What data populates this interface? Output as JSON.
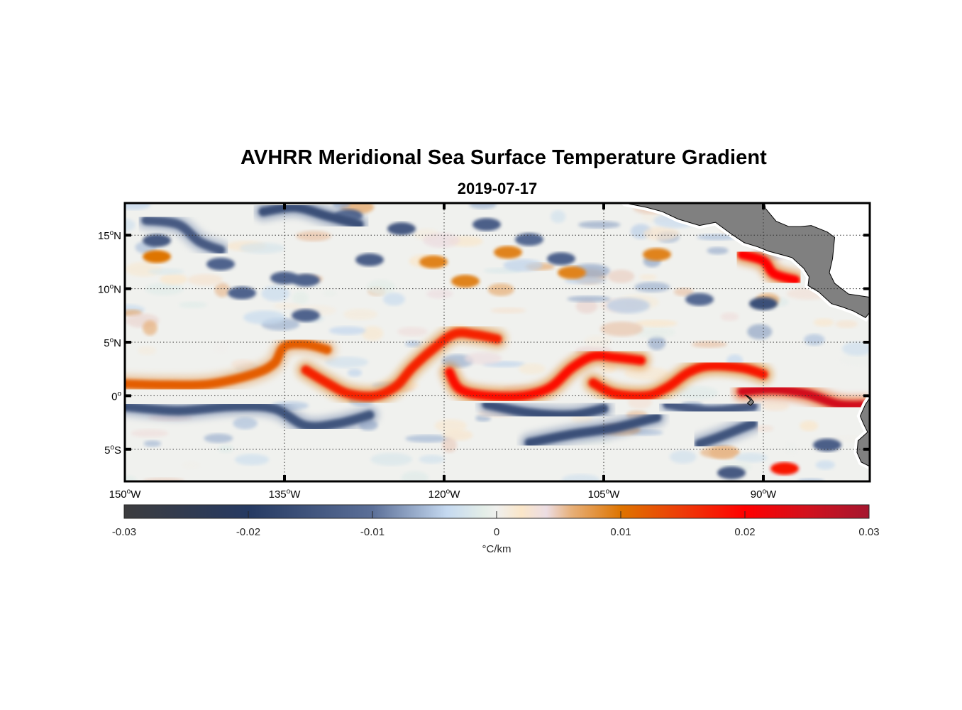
{
  "title": "AVHRR Meridional Sea Surface Temperature Gradient",
  "subtitle": "2019-07-17",
  "map": {
    "projection": "equirectangular",
    "lon_range": [
      -150,
      -80
    ],
    "lat_range": [
      -8,
      18
    ],
    "lat_ticks": [
      {
        "value": 15,
        "label": "15",
        "hemi": "N"
      },
      {
        "value": 10,
        "label": "10",
        "hemi": "N"
      },
      {
        "value": 5,
        "label": "5",
        "hemi": "N"
      },
      {
        "value": 0,
        "label": "0",
        "hemi": ""
      },
      {
        "value": -5,
        "label": "5",
        "hemi": "S"
      }
    ],
    "lon_ticks": [
      {
        "value": -150,
        "label": "150",
        "hemi": "W"
      },
      {
        "value": -135,
        "label": "135",
        "hemi": "W"
      },
      {
        "value": -120,
        "label": "120",
        "hemi": "W"
      },
      {
        "value": -105,
        "label": "105",
        "hemi": "W"
      },
      {
        "value": -90,
        "label": "90",
        "hemi": "W"
      }
    ],
    "grid": "dotted",
    "land_color": "#808080",
    "features": {
      "fronts": [
        {
          "name": "tiw-front-west",
          "value": 0.012,
          "points": [
            [
              -150,
              1.1
            ],
            [
              -146,
              1.0
            ],
            [
              -142,
              1.1
            ],
            [
              -138,
              2.0
            ],
            [
              -136,
              3.0
            ],
            [
              -135,
              4.6
            ],
            [
              -133,
              4.8
            ],
            [
              -131,
              4.3
            ]
          ]
        },
        {
          "name": "tiw-front-1",
          "value": 0.017,
          "points": [
            [
              -133,
              2.4
            ],
            [
              -131,
              1.2
            ],
            [
              -129,
              0.2
            ],
            [
              -126.5,
              0.0
            ],
            [
              -124.5,
              0.9
            ],
            [
              -123,
              2.6
            ],
            [
              -121,
              4.4
            ],
            [
              -119,
              5.8
            ],
            [
              -117,
              5.7
            ],
            [
              -115,
              5.3
            ]
          ]
        },
        {
          "name": "tiw-front-2",
          "value": 0.019,
          "points": [
            [
              -119.5,
              2.2
            ],
            [
              -118.5,
              0.6
            ],
            [
              -116,
              0.0
            ],
            [
              -112.5,
              0.0
            ],
            [
              -110,
              0.8
            ],
            [
              -108,
              2.6
            ],
            [
              -106,
              3.7
            ],
            [
              -104,
              3.6
            ],
            [
              -101.5,
              3.3
            ]
          ]
        },
        {
          "name": "tiw-front-3",
          "value": 0.018,
          "points": [
            [
              -106,
              1.2
            ],
            [
              -104,
              0.2
            ],
            [
              -101,
              0.0
            ],
            [
              -99,
              0.8
            ],
            [
              -97,
              2.2
            ],
            [
              -95,
              2.8
            ],
            [
              -92,
              2.6
            ],
            [
              -90,
              2.0
            ]
          ]
        },
        {
          "name": "cold-tongue-front",
          "value": 0.025,
          "points": [
            [
              -92,
              0.4
            ],
            [
              -89,
              0.6
            ],
            [
              -86,
              0.2
            ],
            [
              -83,
              -0.8
            ],
            [
              -80.5,
              -0.9
            ]
          ]
        },
        {
          "name": "coastal-front",
          "value": 0.02,
          "points": [
            [
              -92,
              13.2
            ],
            [
              -90,
              12.6
            ],
            [
              -89,
              11.4
            ],
            [
              -87,
              10.8
            ]
          ]
        }
      ],
      "troughs": [
        {
          "name": "south-trough-1",
          "value": -0.015,
          "points": [
            [
              -150,
              -1.0
            ],
            [
              -145,
              -1.4
            ],
            [
              -140,
              -1.0
            ],
            [
              -136,
              -1.2
            ],
            [
              -133,
              -2.8
            ],
            [
              -130,
              -2.6
            ],
            [
              -127,
              -1.8
            ]
          ]
        },
        {
          "name": "south-trough-2",
          "value": -0.016,
          "points": [
            [
              -116,
              -0.8
            ],
            [
              -112,
              -1.6
            ],
            [
              -108,
              -1.8
            ],
            [
              -105,
              -1.2
            ]
          ]
        },
        {
          "name": "south-trough-3",
          "value": -0.016,
          "points": [
            [
              -112,
              -4.4
            ],
            [
              -108,
              -3.6
            ],
            [
              -104,
              -3.0
            ],
            [
              -100,
              -2.0
            ]
          ]
        },
        {
          "name": "south-trough-4",
          "value": -0.014,
          "points": [
            [
              -99,
              -0.8
            ],
            [
              -95,
              -1.4
            ],
            [
              -91,
              -1.0
            ]
          ]
        },
        {
          "name": "south-trough-5",
          "value": -0.015,
          "points": [
            [
              -96,
              -4.5
            ],
            [
              -94,
              -3.8
            ],
            [
              -91,
              -2.6
            ]
          ]
        },
        {
          "name": "north-trough-1",
          "value": -0.014,
          "points": [
            [
              -148,
              16.4
            ],
            [
              -145,
              16.0
            ],
            [
              -143,
              14.4
            ],
            [
              -141,
              13.6
            ]
          ]
        },
        {
          "name": "north-trough-2",
          "value": -0.016,
          "points": [
            [
              -137,
              17.2
            ],
            [
              -134,
              17.6
            ],
            [
              -131,
              16.8
            ],
            [
              -128,
              16.0
            ]
          ]
        }
      ]
    }
  },
  "colorbar": {
    "min": -0.03,
    "max": 0.03,
    "ticks": [
      "-0.03",
      "-0.02",
      "-0.01",
      "0",
      "0.01",
      "0.02",
      "0.03"
    ],
    "tick_values": [
      -0.03,
      -0.02,
      -0.01,
      0,
      0.01,
      0.02,
      0.03
    ],
    "label": "°C/km",
    "stops": [
      {
        "value": -0.03,
        "color": "#3c3c3e"
      },
      {
        "value": -0.02,
        "color": "#263a62"
      },
      {
        "value": -0.01,
        "color": "#5b6f98"
      },
      {
        "value": -0.004,
        "color": "#c5d9f0"
      },
      {
        "value": -0.001,
        "color": "#e4eee8"
      },
      {
        "value": 0,
        "color": "#f0f0ee"
      },
      {
        "value": 0.002,
        "color": "#fae6c9"
      },
      {
        "value": 0.004,
        "color": "#ecdde3"
      },
      {
        "value": 0.006,
        "color": "#e7b07a"
      },
      {
        "value": 0.01,
        "color": "#de7400"
      },
      {
        "value": 0.015,
        "color": "#ee3a08"
      },
      {
        "value": 0.02,
        "color": "#ff0000"
      },
      {
        "value": 0.025,
        "color": "#d2111d"
      },
      {
        "value": 0.03,
        "color": "#a5162f"
      }
    ]
  }
}
